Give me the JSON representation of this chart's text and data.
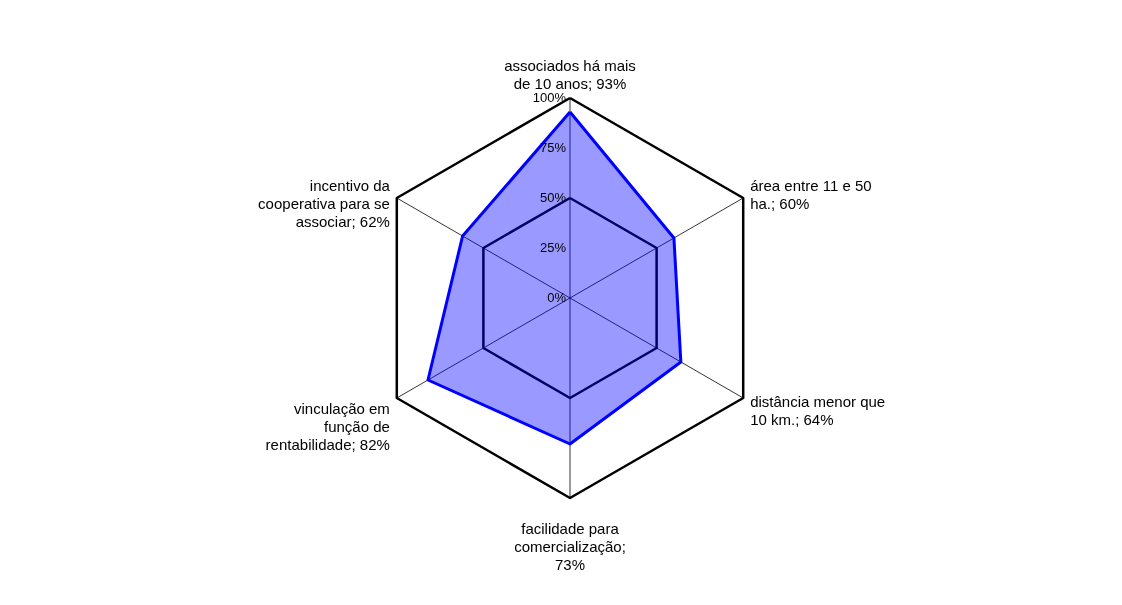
{
  "chart_data": {
    "type": "radar",
    "categories": [
      "associados há mais de 10 anos; 93%",
      "área entre 11 e 50 ha.; 60%",
      "distância menor que 10 km.; 64%",
      "facilidade para comercialização; 73%",
      "vinculação em função de rentabilidade; 82%",
      "incentivo da cooperativa para se associar; 62%"
    ],
    "series": [
      {
        "color": "#0000ff",
        "values": [
          93,
          60,
          64,
          73,
          82,
          62
        ]
      }
    ],
    "ylim": [
      0,
      100
    ],
    "yticks": [
      {
        "value": 0,
        "label": "0%"
      },
      {
        "value": 25,
        "label": "25%"
      },
      {
        "value": 50,
        "label": "50%"
      },
      {
        "value": 75,
        "label": "75%"
      },
      {
        "value": 100,
        "label": "100%"
      }
    ],
    "grid": true
  }
}
